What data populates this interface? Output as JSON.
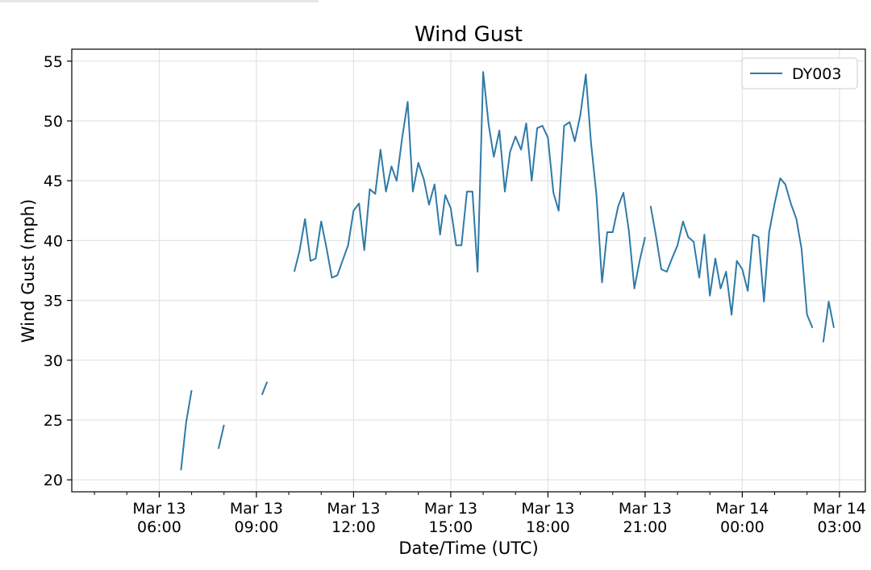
{
  "chart_data": {
    "type": "line",
    "title": "Wind Gust",
    "xlabel": "Date/Time (UTC)",
    "ylabel": "Wind Gust (mph)",
    "x_unit": "hours since Mar 13 00:00 UTC",
    "xlim": [
      3.3,
      27.8
    ],
    "ylim": [
      19,
      56
    ],
    "yticks": [
      20,
      25,
      30,
      35,
      40,
      45,
      50,
      55
    ],
    "xticks": [
      {
        "x": 6,
        "label": [
          "Mar 13",
          "06:00"
        ]
      },
      {
        "x": 9,
        "label": [
          "Mar 13",
          "09:00"
        ]
      },
      {
        "x": 12,
        "label": [
          "Mar 13",
          "12:00"
        ]
      },
      {
        "x": 15,
        "label": [
          "Mar 13",
          "15:00"
        ]
      },
      {
        "x": 18,
        "label": [
          "Mar 13",
          "18:00"
        ]
      },
      {
        "x": 21,
        "label": [
          "Mar 13",
          "21:00"
        ]
      },
      {
        "x": 24,
        "label": [
          "Mar 14",
          "00:00"
        ]
      },
      {
        "x": 27,
        "label": [
          "Mar 14",
          "03:00"
        ]
      }
    ],
    "minor_xticks": [
      4,
      5,
      7,
      8,
      10,
      11,
      13,
      14,
      16,
      17,
      19,
      20,
      22,
      23,
      25,
      26
    ],
    "grid": true,
    "legend": "top-right",
    "series": [
      {
        "name": "DY003",
        "color": "#2f7aa8",
        "segments": [
          [
            [
              6.67,
              20.8
            ],
            [
              6.83,
              24.8
            ],
            [
              7.0,
              27.5
            ]
          ],
          [
            [
              7.83,
              22.6
            ],
            [
              8.0,
              24.6
            ]
          ],
          [
            [
              9.17,
              27.1
            ],
            [
              9.33,
              28.2
            ]
          ],
          [
            [
              10.17,
              37.4
            ],
            [
              10.33,
              39.1
            ],
            [
              10.5,
              41.8
            ],
            [
              10.67,
              38.3
            ],
            [
              10.83,
              38.5
            ],
            [
              11.0,
              41.6
            ],
            [
              11.17,
              39.3
            ],
            [
              11.33,
              36.9
            ],
            [
              11.5,
              37.1
            ],
            [
              11.67,
              38.4
            ],
            [
              11.83,
              39.6
            ],
            [
              12.0,
              42.5
            ],
            [
              12.17,
              43.1
            ],
            [
              12.33,
              39.2
            ],
            [
              12.5,
              44.3
            ],
            [
              12.67,
              43.9
            ],
            [
              12.83,
              47.6
            ],
            [
              13.0,
              44.1
            ],
            [
              13.17,
              46.2
            ],
            [
              13.33,
              45.0
            ],
            [
              13.5,
              48.6
            ],
            [
              13.67,
              51.6
            ],
            [
              13.83,
              44.1
            ],
            [
              14.0,
              46.5
            ],
            [
              14.17,
              45.1
            ],
            [
              14.33,
              43.0
            ],
            [
              14.5,
              44.7
            ],
            [
              14.67,
              40.5
            ],
            [
              14.83,
              43.8
            ],
            [
              15.0,
              42.7
            ],
            [
              15.17,
              39.6
            ],
            [
              15.33,
              39.6
            ],
            [
              15.5,
              44.1
            ],
            [
              15.67,
              44.1
            ],
            [
              15.83,
              37.4
            ],
            [
              16.0,
              54.1
            ],
            [
              16.17,
              49.7
            ],
            [
              16.33,
              47.0
            ],
            [
              16.5,
              49.2
            ],
            [
              16.67,
              44.1
            ],
            [
              16.83,
              47.4
            ],
            [
              17.0,
              48.7
            ],
            [
              17.17,
              47.6
            ],
            [
              17.33,
              49.8
            ],
            [
              17.5,
              45.0
            ],
            [
              17.67,
              49.4
            ],
            [
              17.83,
              49.6
            ],
            [
              18.0,
              48.6
            ],
            [
              18.17,
              44.0
            ],
            [
              18.33,
              42.5
            ],
            [
              18.5,
              49.6
            ],
            [
              18.67,
              49.9
            ],
            [
              18.83,
              48.3
            ],
            [
              19.0,
              50.5
            ],
            [
              19.17,
              53.9
            ],
            [
              19.33,
              48.2
            ],
            [
              19.5,
              43.8
            ],
            [
              19.67,
              36.5
            ],
            [
              19.83,
              40.7
            ],
            [
              20.0,
              40.7
            ],
            [
              20.17,
              42.9
            ],
            [
              20.33,
              44.0
            ],
            [
              20.5,
              40.8
            ],
            [
              20.67,
              36.0
            ],
            [
              20.83,
              38.3
            ],
            [
              21.0,
              40.3
            ]
          ],
          [
            [
              21.17,
              42.9
            ],
            [
              21.33,
              40.5
            ],
            [
              21.5,
              37.6
            ],
            [
              21.67,
              37.4
            ],
            [
              21.83,
              38.5
            ],
            [
              22.0,
              39.6
            ],
            [
              22.17,
              41.6
            ],
            [
              22.33,
              40.3
            ],
            [
              22.5,
              39.9
            ],
            [
              22.67,
              36.9
            ],
            [
              22.83,
              40.5
            ],
            [
              23.0,
              35.4
            ],
            [
              23.17,
              38.5
            ],
            [
              23.33,
              36.0
            ],
            [
              23.5,
              37.4
            ],
            [
              23.67,
              33.8
            ],
            [
              23.83,
              38.3
            ],
            [
              24.0,
              37.6
            ],
            [
              24.17,
              35.8
            ],
            [
              24.33,
              40.5
            ],
            [
              24.5,
              40.3
            ],
            [
              24.67,
              34.9
            ],
            [
              24.83,
              40.7
            ],
            [
              25.0,
              43.1
            ],
            [
              25.17,
              45.2
            ],
            [
              25.33,
              44.7
            ],
            [
              25.5,
              43.1
            ],
            [
              25.67,
              41.8
            ],
            [
              25.83,
              39.3
            ],
            [
              26.0,
              33.8
            ],
            [
              26.17,
              32.7
            ]
          ],
          [
            [
              26.5,
              31.5
            ],
            [
              26.67,
              34.9
            ],
            [
              26.83,
              32.7
            ]
          ]
        ]
      }
    ]
  }
}
